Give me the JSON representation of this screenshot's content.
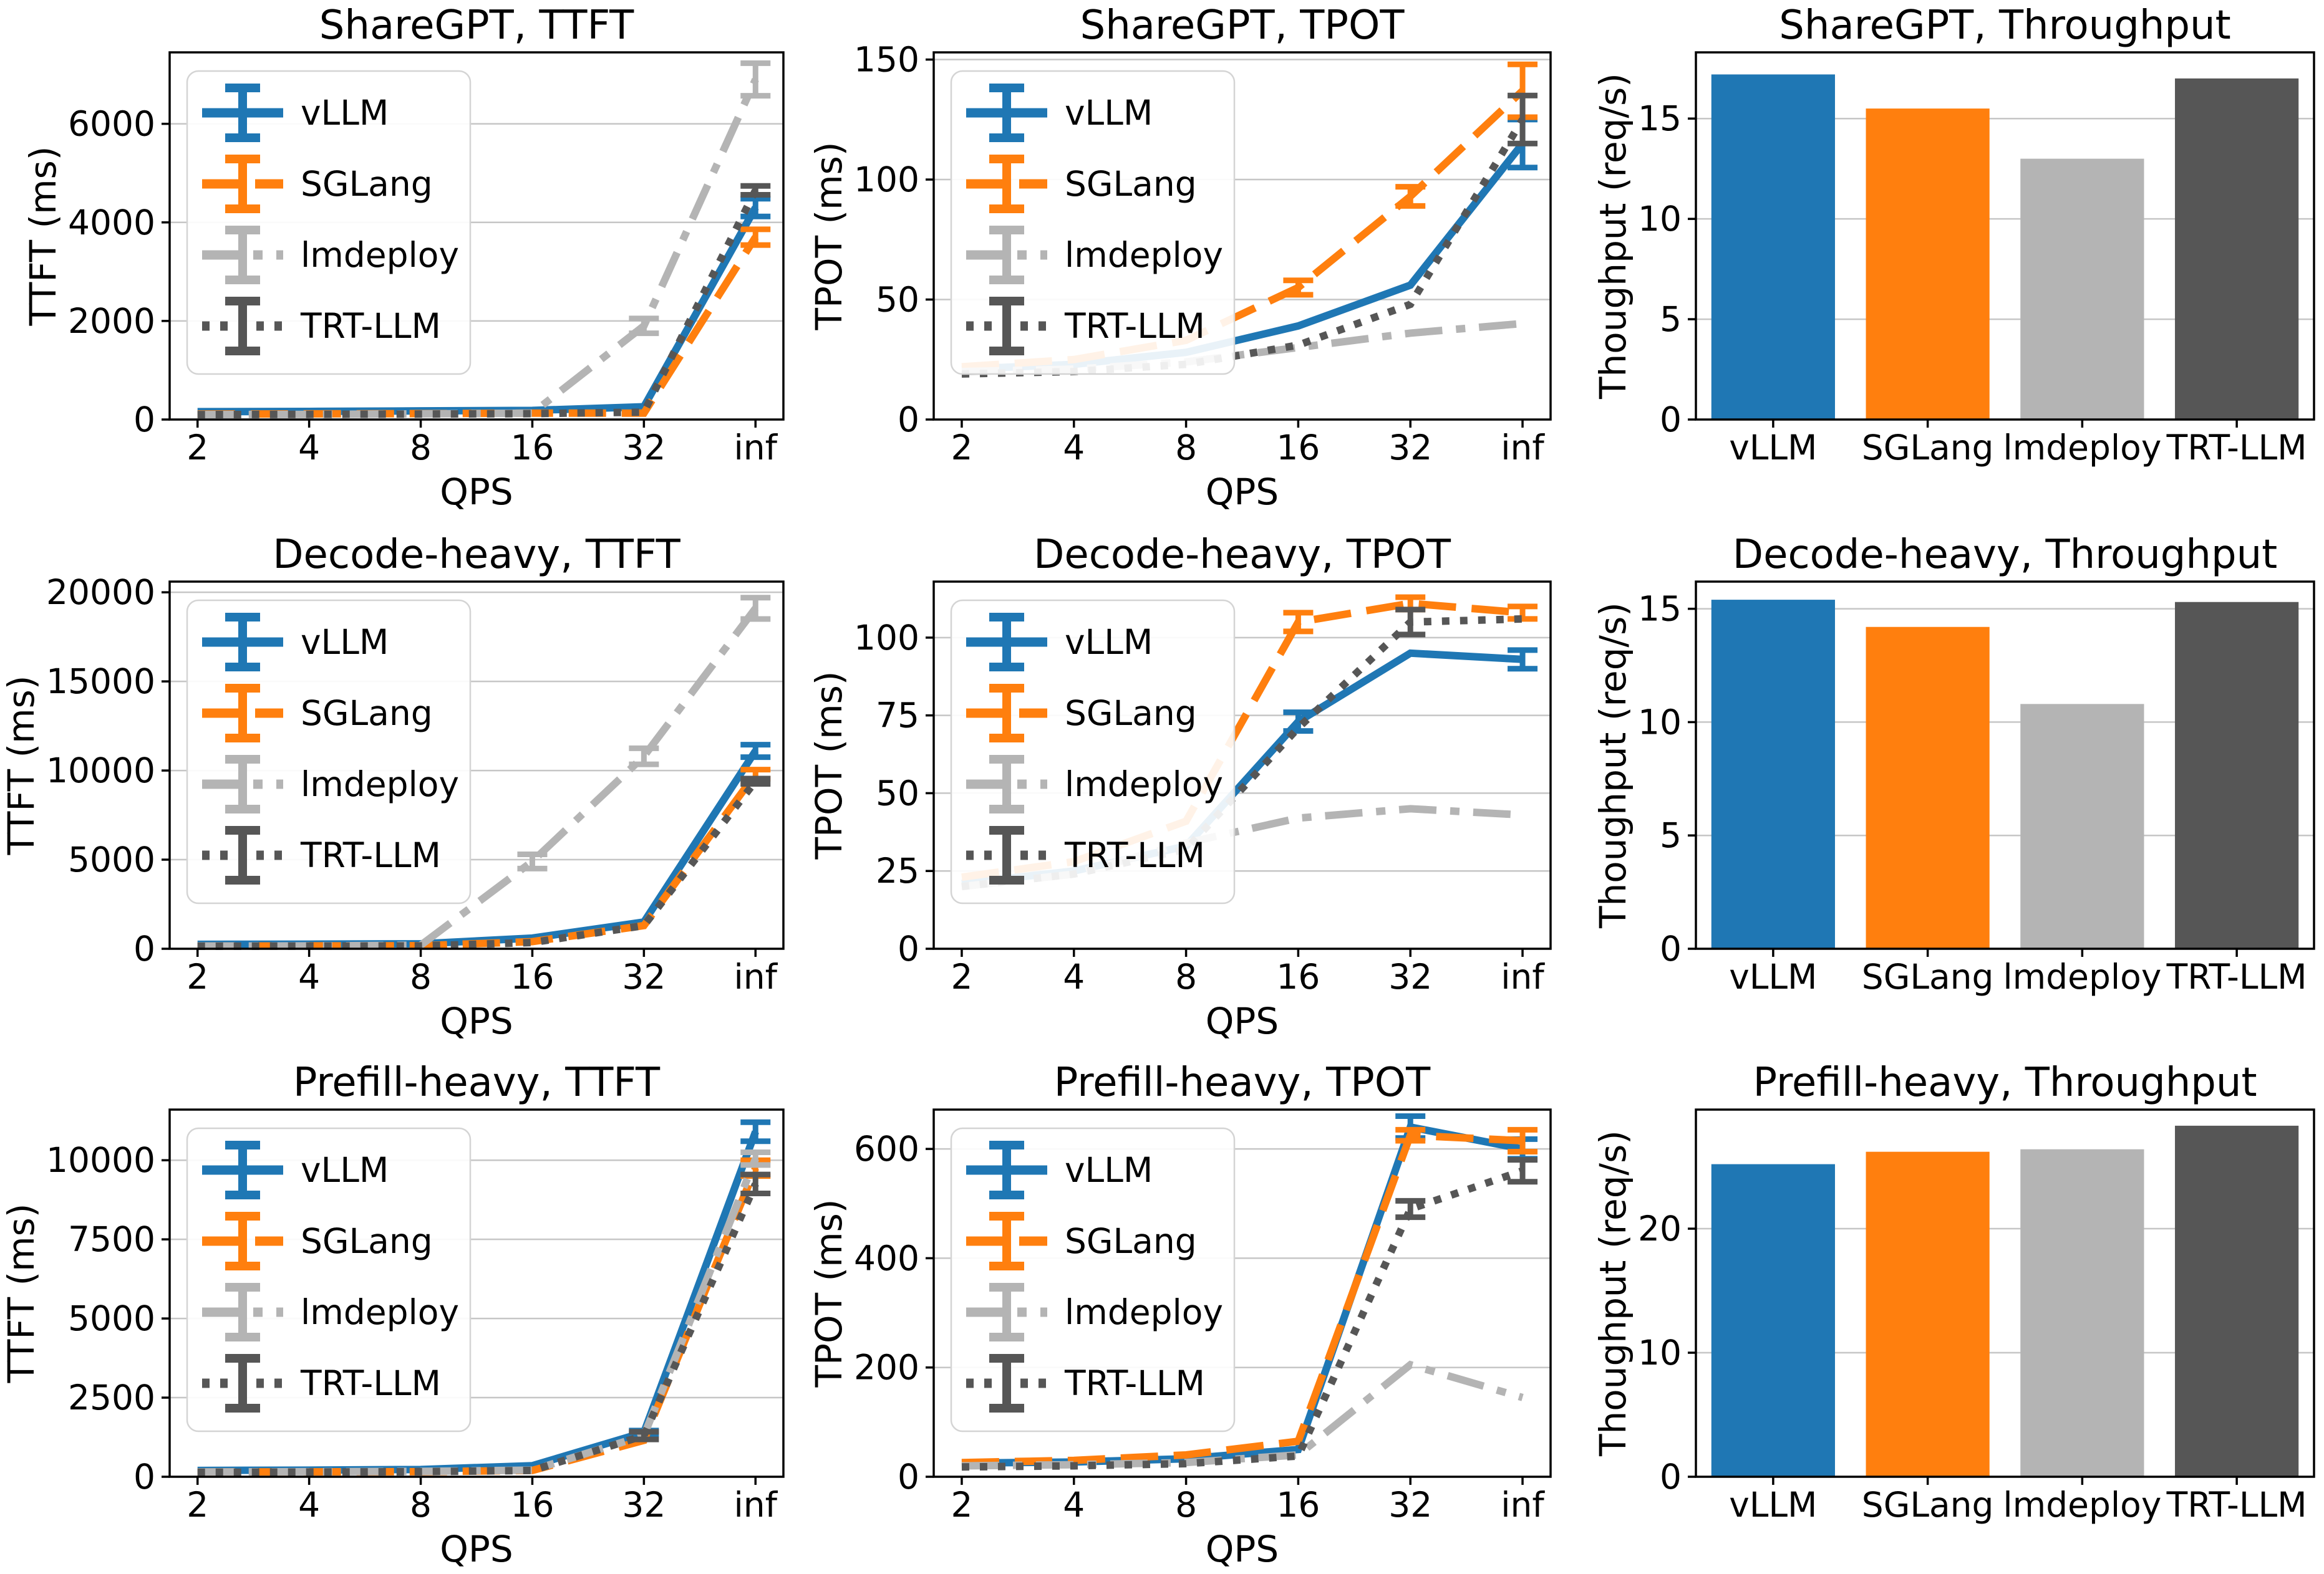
{
  "figure": {
    "x_axis_label": "QPS",
    "x_ticklabels": [
      "2",
      "4",
      "8",
      "16",
      "32",
      "inf"
    ],
    "latency_y_unit": "ms",
    "throughput_y_label": "Thoughput (req/s)",
    "series_names": [
      "vLLM",
      "SGLang",
      "lmdeploy",
      "TRT-LLM"
    ],
    "series_colors": [
      "#1f77b4",
      "#ff7f0e",
      "#b4b4b4",
      "#565656"
    ],
    "grid_color": "#c6c6c6"
  },
  "chart_data": [
    {
      "type": "line",
      "title": "ShareGPT, TTFT",
      "xlabel": "QPS",
      "ylabel": "TTFT (ms)",
      "x_ticklabels": [
        "2",
        "4",
        "8",
        "16",
        "32",
        "inf"
      ],
      "yticks": [
        0,
        2000,
        4000,
        6000
      ],
      "ylim": [
        0,
        7450
      ],
      "grid": true,
      "legend_position": "upper-left",
      "series": [
        {
          "name": "vLLM",
          "color": "#1f77b4",
          "linestyle": "solid",
          "values": [
            160,
            165,
            175,
            185,
            260,
            4300
          ],
          "err": [
            0,
            0,
            0,
            0,
            0,
            180
          ]
        },
        {
          "name": "SGLang",
          "color": "#ff7f0e",
          "linestyle": "dashed",
          "values": [
            110,
            115,
            120,
            130,
            130,
            3700
          ],
          "err": [
            0,
            0,
            0,
            0,
            0,
            160
          ]
        },
        {
          "name": "lmdeploy",
          "color": "#b4b4b4",
          "linestyle": "dashdot",
          "values": [
            100,
            105,
            115,
            130,
            1900,
            6900
          ],
          "err": [
            0,
            0,
            0,
            0,
            150,
            330
          ]
        },
        {
          "name": "TRT-LLM",
          "color": "#565656",
          "linestyle": "dotted",
          "values": [
            100,
            105,
            110,
            120,
            150,
            4650
          ],
          "err": [
            0,
            0,
            0,
            0,
            0,
            90
          ]
        }
      ]
    },
    {
      "type": "line",
      "title": "ShareGPT, TPOT",
      "xlabel": "QPS",
      "ylabel": "TPOT (ms)",
      "x_ticklabels": [
        "2",
        "4",
        "8",
        "16",
        "32",
        "inf"
      ],
      "yticks": [
        0,
        50,
        100,
        150
      ],
      "ylim": [
        0,
        153
      ],
      "grid": true,
      "legend_position": "upper-left",
      "series": [
        {
          "name": "vLLM",
          "color": "#1f77b4",
          "linestyle": "solid",
          "values": [
            21,
            23,
            28,
            39,
            56,
            115
          ],
          "err": [
            0,
            0,
            0,
            0,
            0,
            10
          ]
        },
        {
          "name": "SGLang",
          "color": "#ff7f0e",
          "linestyle": "dashed",
          "values": [
            22,
            25,
            33,
            55,
            93,
            137
          ],
          "err": [
            0,
            0,
            0,
            3,
            4,
            11
          ]
        },
        {
          "name": "lmdeploy",
          "color": "#b4b4b4",
          "linestyle": "dashdot",
          "values": [
            20,
            21,
            24,
            30,
            36,
            40
          ],
          "err": [
            0,
            0,
            0,
            0,
            0,
            0
          ]
        },
        {
          "name": "TRT-LLM",
          "color": "#565656",
          "linestyle": "dotted",
          "values": [
            19,
            20,
            23,
            31,
            48,
            125
          ],
          "err": [
            0,
            0,
            0,
            0,
            0,
            10
          ]
        }
      ]
    },
    {
      "type": "bar",
      "title": "ShareGPT, Throughput",
      "ylabel": "Thoughput (req/s)",
      "categories": [
        "vLLM",
        "SGLang",
        "lmdeploy",
        "TRT-LLM"
      ],
      "colors": [
        "#1f77b4",
        "#ff7f0e",
        "#b4b4b4",
        "#565656"
      ],
      "values": [
        17.2,
        15.5,
        13.0,
        17.0
      ],
      "yticks": [
        0,
        5,
        10,
        15
      ],
      "ylim": [
        0,
        18.3
      ],
      "grid": true
    },
    {
      "type": "line",
      "title": "Decode-heavy, TTFT",
      "xlabel": "QPS",
      "ylabel": "TTFT (ms)",
      "x_ticklabels": [
        "2",
        "4",
        "8",
        "16",
        "32",
        "inf"
      ],
      "yticks": [
        0,
        5000,
        10000,
        15000,
        20000
      ],
      "ylim": [
        0,
        20600
      ],
      "grid": true,
      "legend_position": "upper-left",
      "series": [
        {
          "name": "vLLM",
          "color": "#1f77b4",
          "linestyle": "solid",
          "values": [
            250,
            260,
            280,
            600,
            1500,
            11100
          ],
          "err": [
            0,
            0,
            0,
            0,
            0,
            350
          ]
        },
        {
          "name": "SGLang",
          "color": "#ff7f0e",
          "linestyle": "dashed",
          "values": [
            150,
            160,
            170,
            400,
            1300,
            9800
          ],
          "err": [
            0,
            0,
            0,
            0,
            0,
            250
          ]
        },
        {
          "name": "lmdeploy",
          "color": "#b4b4b4",
          "linestyle": "dashdot",
          "values": [
            150,
            160,
            200,
            4900,
            10800,
            19100
          ],
          "err": [
            0,
            0,
            0,
            400,
            450,
            600
          ]
        },
        {
          "name": "TRT-LLM",
          "color": "#565656",
          "linestyle": "dotted",
          "values": [
            140,
            150,
            160,
            350,
            1300,
            9400
          ],
          "err": [
            0,
            0,
            0,
            0,
            0,
            150
          ]
        }
      ]
    },
    {
      "type": "line",
      "title": "Decode-heavy, TPOT",
      "xlabel": "QPS",
      "ylabel": "TPOT (ms)",
      "x_ticklabels": [
        "2",
        "4",
        "8",
        "16",
        "32",
        "inf"
      ],
      "yticks": [
        0,
        25,
        50,
        75,
        100
      ],
      "ylim": [
        0,
        118
      ],
      "grid": true,
      "legend_position": "upper-left",
      "series": [
        {
          "name": "vLLM",
          "color": "#1f77b4",
          "linestyle": "solid",
          "values": [
            21,
            25,
            33,
            73,
            95,
            93
          ],
          "err": [
            0,
            0,
            0,
            3,
            0,
            3
          ]
        },
        {
          "name": "SGLang",
          "color": "#ff7f0e",
          "linestyle": "dashed",
          "values": [
            23,
            28,
            41,
            105,
            111,
            108
          ],
          "err": [
            0,
            0,
            0,
            3,
            2,
            2
          ]
        },
        {
          "name": "lmdeploy",
          "color": "#b4b4b4",
          "linestyle": "dashdot",
          "values": [
            20,
            24,
            34,
            42,
            45,
            43
          ],
          "err": [
            0,
            0,
            0,
            0,
            0,
            0
          ]
        },
        {
          "name": "TRT-LLM",
          "color": "#565656",
          "linestyle": "dotted",
          "values": [
            20,
            24,
            32,
            71,
            105,
            106
          ],
          "err": [
            0,
            0,
            0,
            0,
            4,
            0
          ]
        }
      ]
    },
    {
      "type": "bar",
      "title": "Decode-heavy, Throughput",
      "ylabel": "Thoughput (req/s)",
      "categories": [
        "vLLM",
        "SGLang",
        "lmdeploy",
        "TRT-LLM"
      ],
      "colors": [
        "#1f77b4",
        "#ff7f0e",
        "#b4b4b4",
        "#565656"
      ],
      "values": [
        15.4,
        14.2,
        10.8,
        15.3
      ],
      "yticks": [
        0,
        5,
        10,
        15
      ],
      "ylim": [
        0,
        16.2
      ],
      "grid": true
    },
    {
      "type": "line",
      "title": "Prefill-heavy, TTFT",
      "xlabel": "QPS",
      "ylabel": "TTFT (ms)",
      "x_ticklabels": [
        "2",
        "4",
        "8",
        "16",
        "32",
        "inf"
      ],
      "yticks": [
        0,
        2500,
        5000,
        7500,
        10000
      ],
      "ylim": [
        0,
        11600
      ],
      "grid": true,
      "legend_position": "upper-left",
      "series": [
        {
          "name": "vLLM",
          "color": "#1f77b4",
          "linestyle": "solid",
          "values": [
            200,
            210,
            230,
            350,
            1400,
            10900
          ],
          "err": [
            0,
            0,
            0,
            0,
            60,
            300
          ]
        },
        {
          "name": "SGLang",
          "color": "#ff7f0e",
          "linestyle": "dashed",
          "values": [
            150,
            155,
            160,
            200,
            1150,
            9750
          ],
          "err": [
            0,
            0,
            0,
            0,
            0,
            250
          ]
        },
        {
          "name": "lmdeploy",
          "color": "#b4b4b4",
          "linestyle": "dashdot",
          "values": [
            150,
            160,
            170,
            210,
            1300,
            10050
          ],
          "err": [
            0,
            0,
            0,
            0,
            0,
            200
          ]
        },
        {
          "name": "TRT-LLM",
          "color": "#565656",
          "linestyle": "dotted",
          "values": [
            140,
            150,
            160,
            200,
            1300,
            9250
          ],
          "err": [
            0,
            0,
            0,
            0,
            120,
            300
          ]
        }
      ]
    },
    {
      "type": "line",
      "title": "Prefill-heavy, TPOT",
      "xlabel": "QPS",
      "ylabel": "TPOT (ms)",
      "x_ticklabels": [
        "2",
        "4",
        "8",
        "16",
        "32",
        "inf"
      ],
      "yticks": [
        0,
        200,
        400,
        600
      ],
      "ylim": [
        0,
        672
      ],
      "grid": true,
      "legend_position": "upper-left",
      "series": [
        {
          "name": "vLLM",
          "color": "#1f77b4",
          "linestyle": "solid",
          "values": [
            25,
            27,
            33,
            50,
            640,
            600
          ],
          "err": [
            0,
            0,
            0,
            0,
            20,
            18
          ]
        },
        {
          "name": "SGLang",
          "color": "#ff7f0e",
          "linestyle": "dashed",
          "values": [
            26,
            30,
            40,
            65,
            625,
            615
          ],
          "err": [
            0,
            0,
            0,
            0,
            10,
            20
          ]
        },
        {
          "name": "lmdeploy",
          "color": "#b4b4b4",
          "linestyle": "dashdot",
          "values": [
            20,
            22,
            26,
            40,
            205,
            145
          ],
          "err": [
            0,
            0,
            0,
            0,
            0,
            0
          ]
        },
        {
          "name": "TRT-LLM",
          "color": "#565656",
          "linestyle": "dotted",
          "values": [
            18,
            20,
            24,
            38,
            490,
            560
          ],
          "err": [
            0,
            0,
            0,
            0,
            15,
            20
          ]
        }
      ]
    },
    {
      "type": "bar",
      "title": "Prefill-heavy, Throughput",
      "ylabel": "Thoughput (req/s)",
      "categories": [
        "vLLM",
        "SGLang",
        "lmdeploy",
        "TRT-LLM"
      ],
      "colors": [
        "#1f77b4",
        "#ff7f0e",
        "#b4b4b4",
        "#565656"
      ],
      "values": [
        25.2,
        26.2,
        26.4,
        28.3
      ],
      "yticks": [
        0,
        10,
        20
      ],
      "ylim": [
        0,
        29.6
      ],
      "grid": true
    }
  ]
}
